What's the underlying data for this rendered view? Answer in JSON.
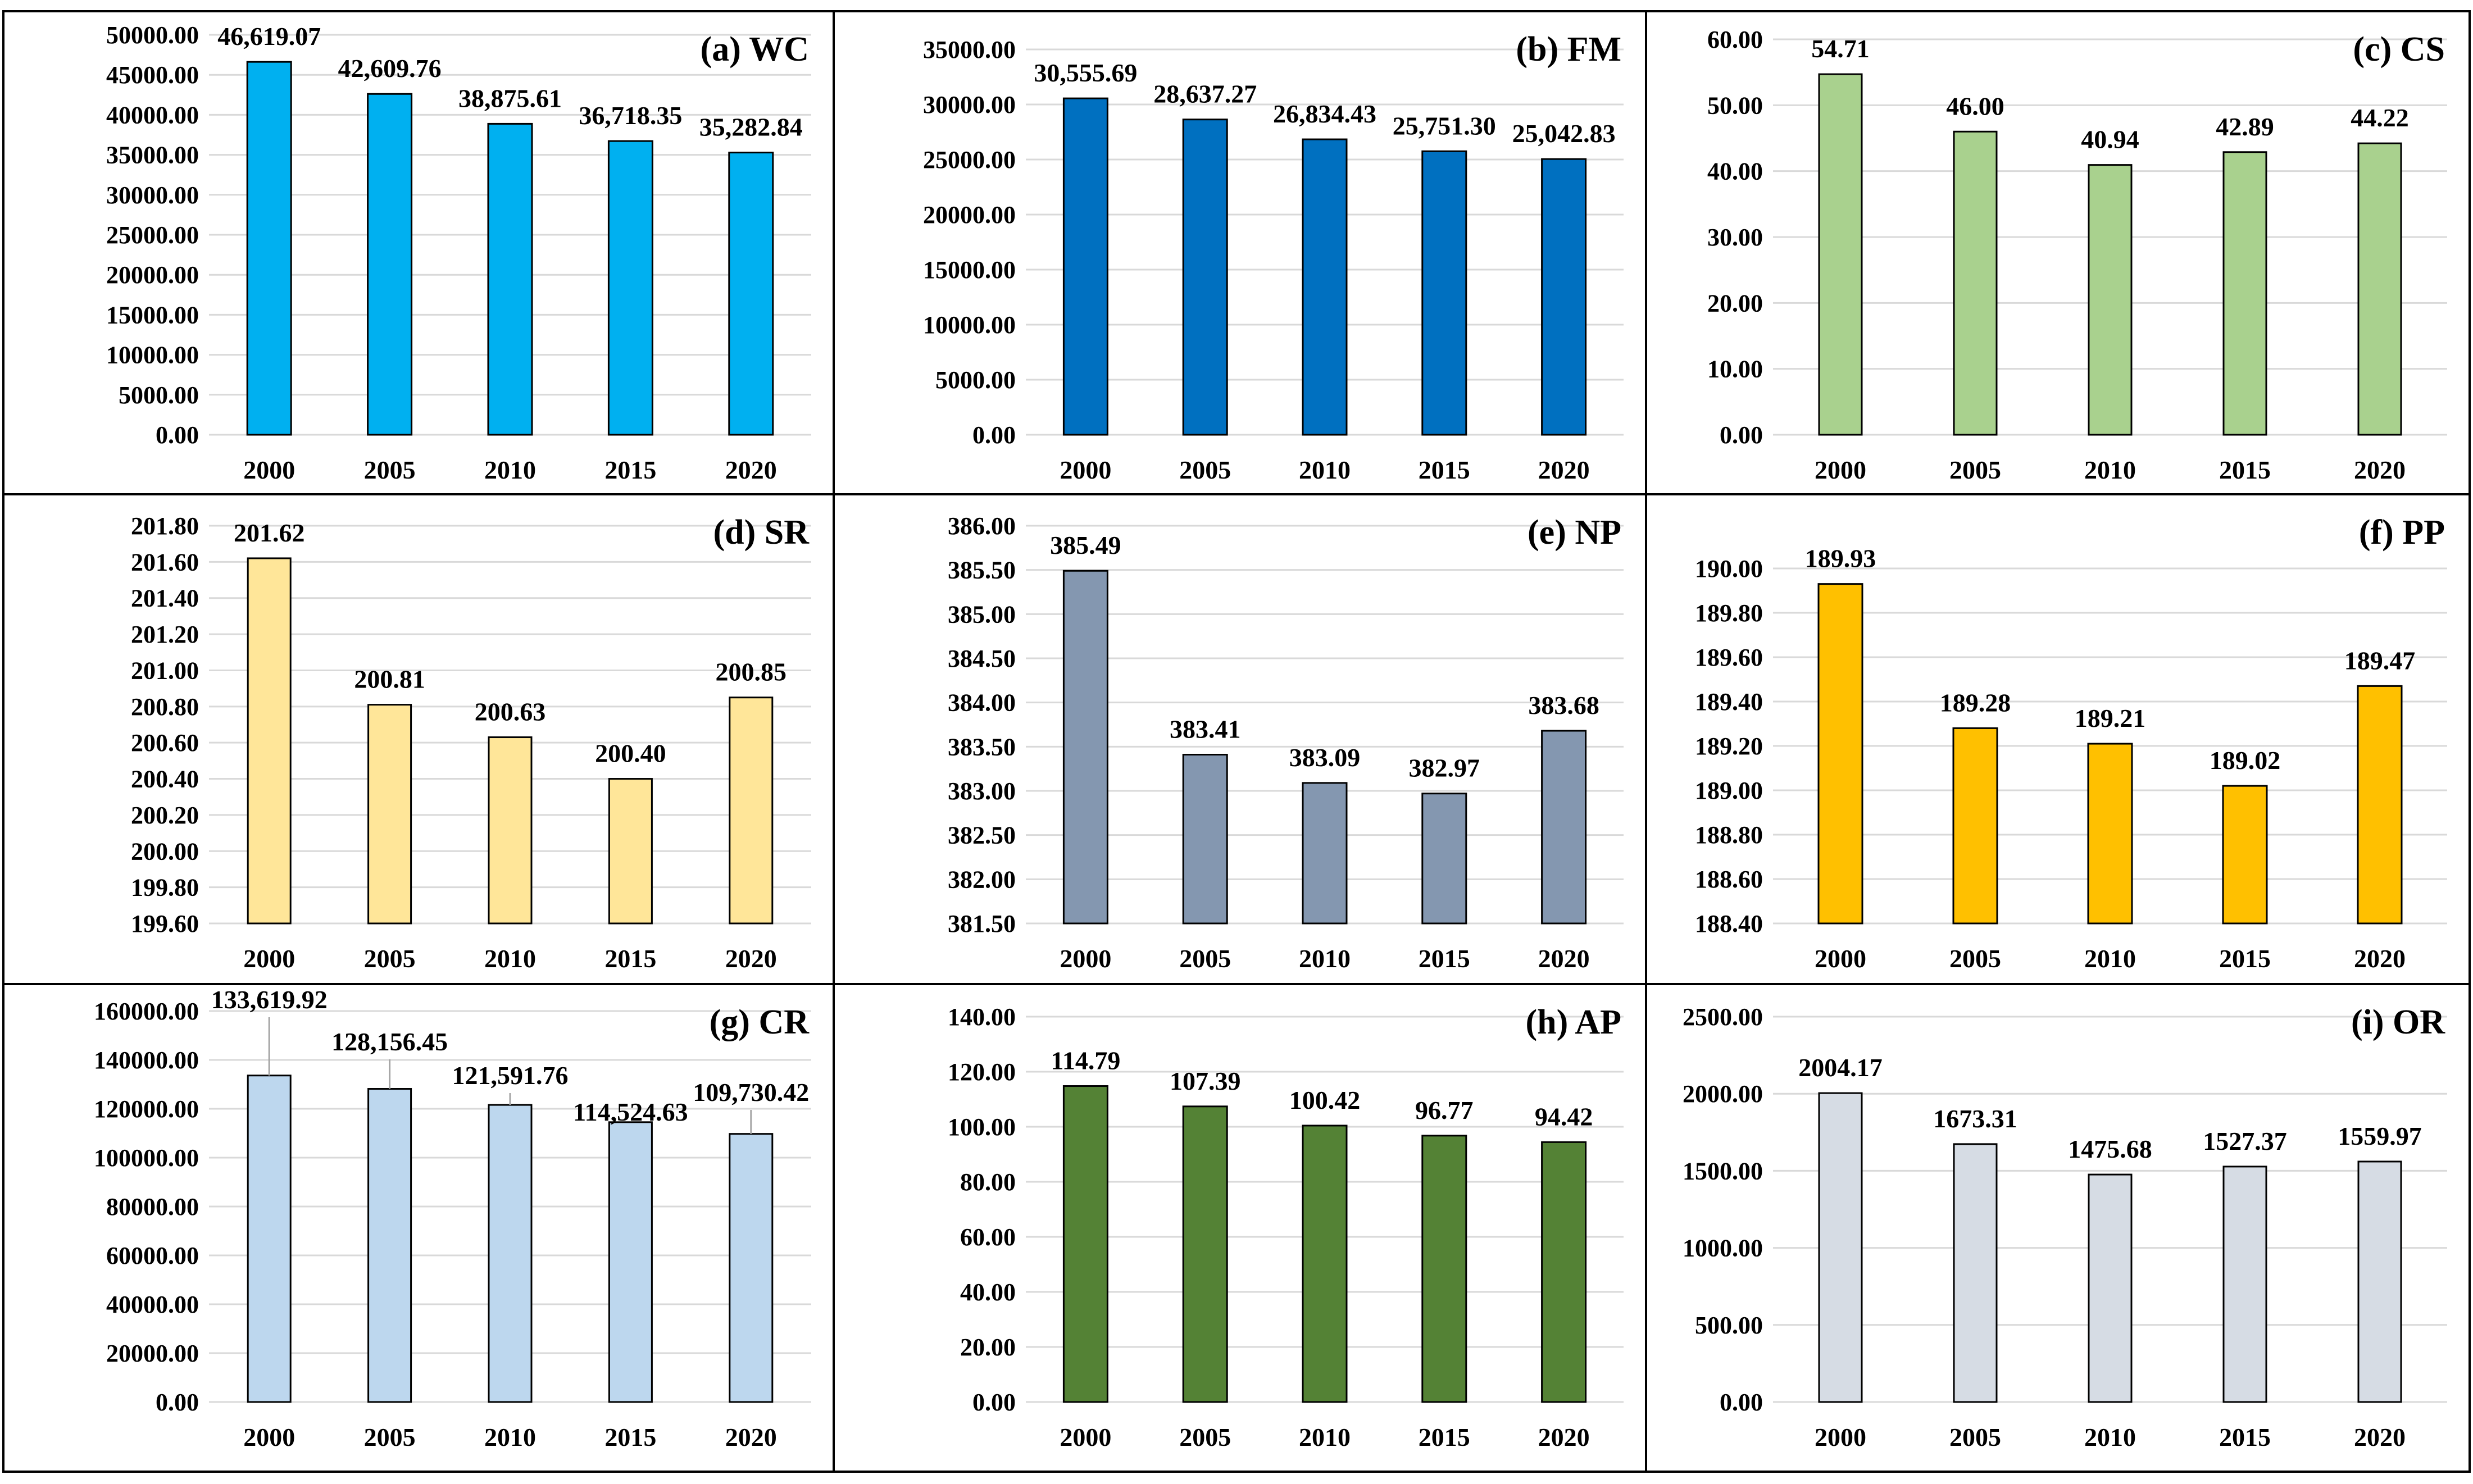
{
  "chart_data": [
    {
      "type": "bar",
      "title": "(a) WC",
      "categories": [
        "2000",
        "2005",
        "2010",
        "2015",
        "2020"
      ],
      "values": [
        46619.07,
        42609.76,
        38875.61,
        36718.35,
        35282.84
      ],
      "value_labels": [
        "46,619.07",
        "42,609.76",
        "38,875.61",
        "36,718.35",
        "35,282.84"
      ],
      "yticks": [
        "0.00",
        "5000.00",
        "10000.00",
        "15000.00",
        "20000.00",
        "25000.00",
        "30000.00",
        "35000.00",
        "40000.00",
        "45000.00",
        "50000.00"
      ],
      "ylim": [
        0,
        50000
      ],
      "grid": true,
      "color": "#00B0F0",
      "leader_lines": false
    },
    {
      "type": "bar",
      "title": "(b) FM",
      "categories": [
        "2000",
        "2005",
        "2010",
        "2015",
        "2020"
      ],
      "values": [
        30555.69,
        28637.27,
        26834.43,
        25751.3,
        25042.83
      ],
      "value_labels": [
        "30,555.69",
        "28,637.27",
        "26,834.43",
        "25,751.30",
        "25,042.83"
      ],
      "yticks": [
        "0.00",
        "5000.00",
        "10000.00",
        "15000.00",
        "20000.00",
        "25000.00",
        "30000.00",
        "35000.00"
      ],
      "ylim": [
        0,
        35000
      ],
      "grid": true,
      "color": "#0070C0",
      "leader_lines": false
    },
    {
      "type": "bar",
      "title": "(c) CS",
      "categories": [
        "2000",
        "2005",
        "2010",
        "2015",
        "2020"
      ],
      "values": [
        54.71,
        46.0,
        40.94,
        42.89,
        44.22
      ],
      "value_labels": [
        "54.71",
        "46.00",
        "40.94",
        "42.89",
        "44.22"
      ],
      "yticks": [
        "0.00",
        "10.00",
        "20.00",
        "30.00",
        "40.00",
        "50.00",
        "60.00"
      ],
      "ylim": [
        0,
        60
      ],
      "grid": true,
      "color": "#A9D18E",
      "leader_lines": false
    },
    {
      "type": "bar",
      "title": "(d) SR",
      "categories": [
        "2000",
        "2005",
        "2010",
        "2015",
        "2020"
      ],
      "values": [
        201.62,
        200.81,
        200.63,
        200.4,
        200.85
      ],
      "value_labels": [
        "201.62",
        "200.81",
        "200.63",
        "200.40",
        "200.85"
      ],
      "yticks": [
        "199.60",
        "199.80",
        "200.00",
        "200.20",
        "200.40",
        "200.60",
        "200.80",
        "201.00",
        "201.20",
        "201.40",
        "201.60",
        "201.80"
      ],
      "ylim": [
        199.6,
        201.8
      ],
      "grid": true,
      "color": "#FFE699",
      "leader_lines": false
    },
    {
      "type": "bar",
      "title": "(e) NP",
      "categories": [
        "2000",
        "2005",
        "2010",
        "2015",
        "2020"
      ],
      "values": [
        385.49,
        383.41,
        383.09,
        382.97,
        383.68
      ],
      "value_labels": [
        "385.49",
        "383.41",
        "383.09",
        "382.97",
        "383.68"
      ],
      "yticks": [
        "381.50",
        "382.00",
        "382.50",
        "383.00",
        "383.50",
        "384.00",
        "384.50",
        "385.00",
        "385.50",
        "386.00"
      ],
      "ylim": [
        381.5,
        386
      ],
      "grid": true,
      "color": "#8497B0",
      "leader_lines": false
    },
    {
      "type": "bar",
      "title": "(f) PP",
      "categories": [
        "2000",
        "2005",
        "2010",
        "2015",
        "2020"
      ],
      "values": [
        189.93,
        189.28,
        189.21,
        189.02,
        189.47
      ],
      "value_labels": [
        "189.93",
        "189.28",
        "189.21",
        "189.02",
        "189.47"
      ],
      "yticks": [
        "188.40",
        "188.60",
        "188.80",
        "189.00",
        "189.20",
        "189.40",
        "189.60",
        "189.80",
        "190.00"
      ],
      "ylim": [
        188.4,
        190.0
      ],
      "grid": true,
      "color": "#FFC000",
      "leader_lines": false
    },
    {
      "type": "bar",
      "title": "(g) CR",
      "categories": [
        "2000",
        "2005",
        "2010",
        "2015",
        "2020"
      ],
      "values": [
        133619.92,
        128156.45,
        121591.76,
        114524.63,
        109730.42
      ],
      "value_labels": [
        "133,619.92",
        "128,156.45",
        "121,591.76",
        "114,524.63",
        "109,730.42"
      ],
      "yticks": [
        "0.00",
        "20000.00",
        "40000.00",
        "60000.00",
        "80000.00",
        "100000.00",
        "120000.00",
        "140000.00",
        "160000.00"
      ],
      "ylim": [
        0,
        160000
      ],
      "grid": true,
      "color": "#BDD7EE",
      "leader_lines": true
    },
    {
      "type": "bar",
      "title": "(h) AP",
      "categories": [
        "2000",
        "2005",
        "2010",
        "2015",
        "2020"
      ],
      "values": [
        114.79,
        107.39,
        100.42,
        96.77,
        94.42
      ],
      "value_labels": [
        "114.79",
        "107.39",
        "100.42",
        "96.77",
        "94.42"
      ],
      "yticks": [
        "0.00",
        "20.00",
        "40.00",
        "60.00",
        "80.00",
        "100.00",
        "120.00",
        "140.00"
      ],
      "ylim": [
        0,
        140
      ],
      "grid": true,
      "color": "#548235",
      "leader_lines": false
    },
    {
      "type": "bar",
      "title": "(i) OR",
      "categories": [
        "2000",
        "2005",
        "2010",
        "2015",
        "2020"
      ],
      "values": [
        2004.17,
        1673.31,
        1475.68,
        1527.37,
        1559.97
      ],
      "value_labels": [
        "2004.17",
        "1673.31",
        "1475.68",
        "1527.37",
        "1559.97"
      ],
      "yticks": [
        "0.00",
        "500.00",
        "1000.00",
        "1500.00",
        "2000.00",
        "2500.00"
      ],
      "ylim": [
        0,
        2500
      ],
      "grid": true,
      "color": "#D6DCE4",
      "leader_lines": false
    }
  ]
}
